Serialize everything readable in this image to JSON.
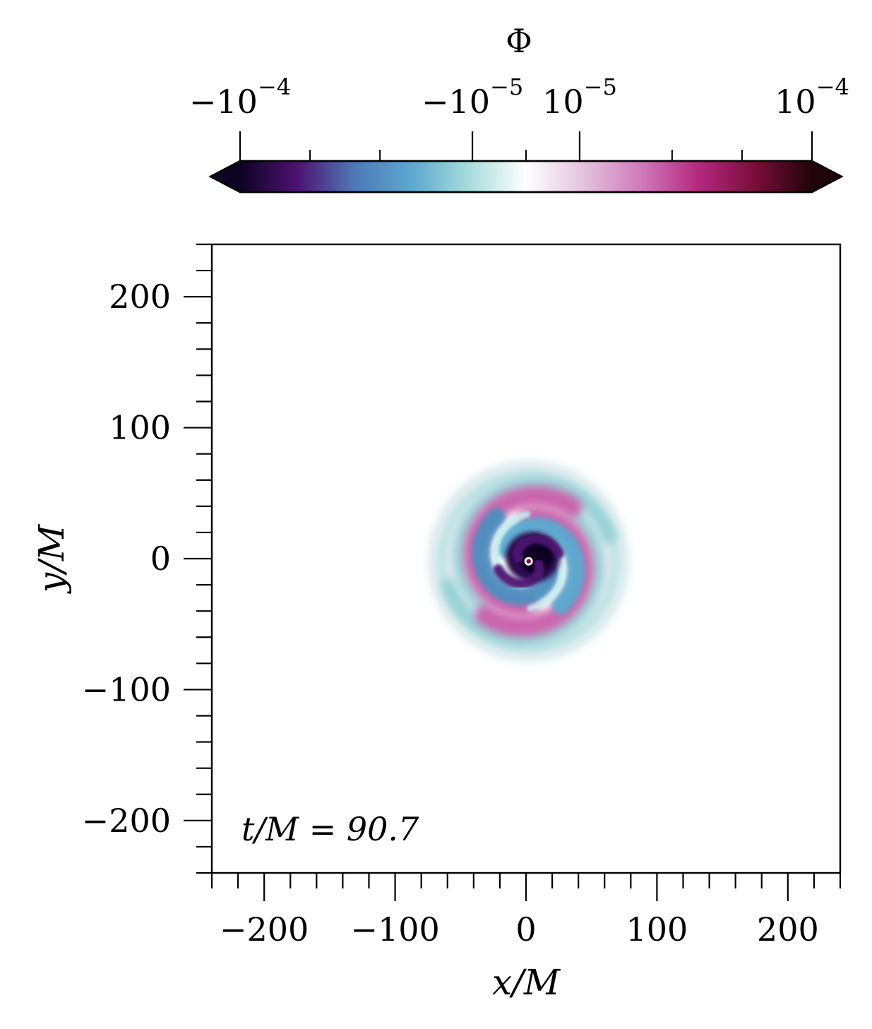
{
  "chart_data": {
    "type": "heatmap",
    "title": "",
    "xlabel": "x/M",
    "ylabel": "y/M",
    "xlim": [
      -240,
      240
    ],
    "ylim": [
      -240,
      240
    ],
    "x_ticks": [
      {
        "value": -200,
        "label": "−200"
      },
      {
        "value": -100,
        "label": "−100"
      },
      {
        "value": 0,
        "label": "0"
      },
      {
        "value": 100,
        "label": "100"
      },
      {
        "value": 200,
        "label": "200"
      }
    ],
    "y_ticks": [
      {
        "value": -200,
        "label": "−200"
      },
      {
        "value": -100,
        "label": "−100"
      },
      {
        "value": 0,
        "label": "0"
      },
      {
        "value": 100,
        "label": "100"
      },
      {
        "value": 200,
        "label": "200"
      }
    ],
    "minor_tick_step": 20,
    "grid": false,
    "annotation": {
      "text": "t/M = 90.7",
      "placement": "bottom-left"
    },
    "field": {
      "name": "Φ",
      "center": [
        2,
        -2
      ],
      "structure": "two-armed spiral scalar-field wave pattern around the origin",
      "extent_radius": 80
    },
    "colorbar": {
      "label": "Φ",
      "orientation": "horizontal",
      "placement": "top",
      "scale": "symlog",
      "extend": "both",
      "major_ticks": [
        {
          "value": -0.0001,
          "label": "−10",
          "exp": "−4"
        },
        {
          "value": -1e-05,
          "label": "−10",
          "exp": "−5"
        },
        {
          "value": 1e-05,
          "label": "10",
          "exp": "−5"
        },
        {
          "value": 0.0001,
          "label": "10",
          "exp": "−4"
        }
      ],
      "minor_ticks": [
        -5e-05,
        -2.5e-05,
        0,
        2.5e-05,
        5e-05
      ],
      "colors": [
        "#0d0322",
        "#4d1272",
        "#4e79b7",
        "#5ca8cf",
        "#a8dcdb",
        "#ffffff",
        "#e3c4dc",
        "#d07bbb",
        "#b52981",
        "#7a0d3a",
        "#1f0508"
      ]
    }
  }
}
